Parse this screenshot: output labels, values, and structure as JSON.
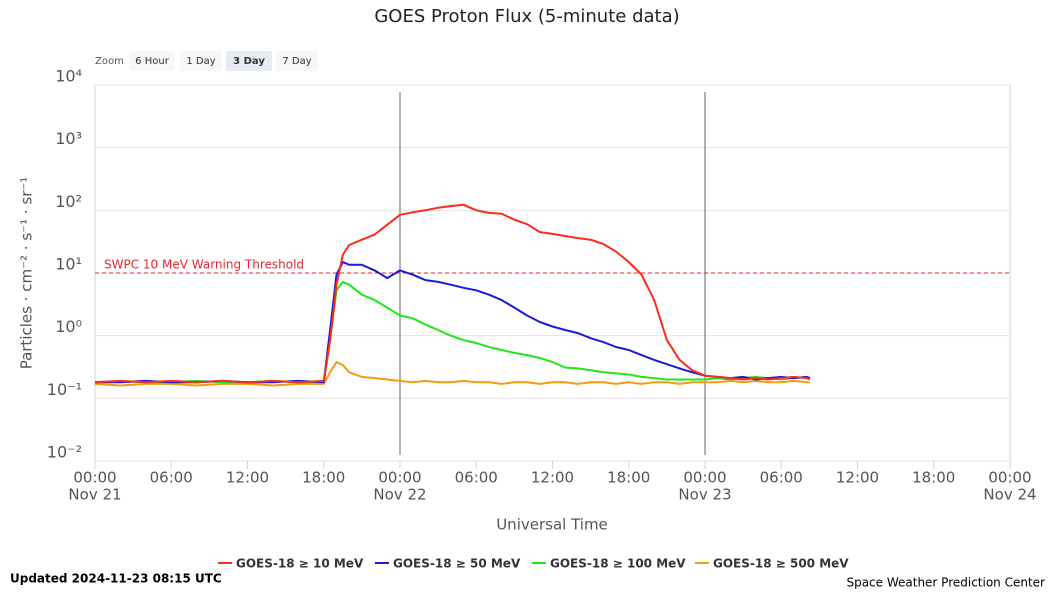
{
  "chart_data": {
    "type": "line",
    "title": "GOES Proton Flux (5-minute data)",
    "zoom": {
      "label": "Zoom",
      "buttons": [
        "6 Hour",
        "1 Day",
        "3 Day",
        "7 Day"
      ],
      "selected": 2
    },
    "x_label": "Universal Time",
    "y_label": "Particles · cm⁻² · s⁻¹ · sr⁻¹",
    "log_y": true,
    "grid": true,
    "xlim": [
      "Nov 21 00:00",
      "Nov 24 00:00"
    ],
    "xticks": [
      {
        "value": "Nov 21 00:00",
        "label": "00:00"
      },
      {
        "value": "Nov 21 06:00",
        "label": "06:00"
      },
      {
        "value": "Nov 21 12:00",
        "label": "12:00"
      },
      {
        "value": "Nov 21 18:00",
        "label": "18:00"
      },
      {
        "value": "Nov 22 00:00",
        "label": "00:00"
      },
      {
        "value": "Nov 22 06:00",
        "label": "06:00"
      },
      {
        "value": "Nov 22 12:00",
        "label": "12:00"
      },
      {
        "value": "Nov 22 18:00",
        "label": "18:00"
      },
      {
        "value": "Nov 23 00:00",
        "label": "00:00"
      },
      {
        "value": "Nov 23 06:00",
        "label": "06:00"
      },
      {
        "value": "Nov 23 12:00",
        "label": "12:00"
      },
      {
        "value": "Nov 23 18:00",
        "label": "18:00"
      },
      {
        "value": "Nov 24 00:00",
        "label": "00:00"
      }
    ],
    "xtick_dates": [
      {
        "value": "Nov 21 00:00",
        "label": "Nov 21"
      },
      {
        "value": "Nov 22 00:00",
        "label": "Nov 22"
      },
      {
        "value": "Nov 23 00:00",
        "label": "Nov 23"
      },
      {
        "value": "Nov 24 00:00",
        "label": "Nov 24"
      }
    ],
    "ylim": [
      0.01,
      10000
    ],
    "yticks": [
      {
        "value": 0.01,
        "label": "10⁻²"
      },
      {
        "value": 0.1,
        "label": "10⁻¹"
      },
      {
        "value": 1,
        "label": "10⁰"
      },
      {
        "value": 10,
        "label": "10¹"
      },
      {
        "value": 100,
        "label": "10²"
      },
      {
        "value": 1000,
        "label": "10³"
      },
      {
        "value": 10000,
        "label": "10⁴"
      }
    ],
    "threshold": {
      "value": 10,
      "label": "SWPC 10 MeV Warning Threshold",
      "color": "#e8262b"
    },
    "plot_lines_x": [
      "Nov 22 00:00",
      "Nov 23 00:00"
    ],
    "x": [
      "Nov 21 00:00",
      "Nov 21 02:00",
      "Nov 21 04:00",
      "Nov 21 06:00",
      "Nov 21 08:00",
      "Nov 21 10:00",
      "Nov 21 12:00",
      "Nov 21 14:00",
      "Nov 21 16:00",
      "Nov 21 18:00",
      "Nov 21 18:30",
      "Nov 21 19:00",
      "Nov 21 19:30",
      "Nov 21 20:00",
      "Nov 21 21:00",
      "Nov 21 22:00",
      "Nov 21 23:00",
      "Nov 22 00:00",
      "Nov 22 01:00",
      "Nov 22 02:00",
      "Nov 22 03:00",
      "Nov 22 04:00",
      "Nov 22 05:00",
      "Nov 22 06:00",
      "Nov 22 07:00",
      "Nov 22 08:00",
      "Nov 22 09:00",
      "Nov 22 10:00",
      "Nov 22 11:00",
      "Nov 22 12:00",
      "Nov 22 13:00",
      "Nov 22 14:00",
      "Nov 22 15:00",
      "Nov 22 16:00",
      "Nov 22 17:00",
      "Nov 22 18:00",
      "Nov 22 19:00",
      "Nov 22 20:00",
      "Nov 22 21:00",
      "Nov 22 22:00",
      "Nov 22 23:00",
      "Nov 23 00:00",
      "Nov 23 01:00",
      "Nov 23 02:00",
      "Nov 23 03:00",
      "Nov 23 04:00",
      "Nov 23 05:00",
      "Nov 23 06:00",
      "Nov 23 07:00",
      "Nov 23 08:00",
      "Nov 23 08:15"
    ],
    "series": [
      {
        "name": "GOES-18 ≥ 10 MeV",
        "color": "#ff2a1a",
        "values": [
          0.18,
          0.19,
          0.18,
          0.19,
          0.18,
          0.19,
          0.18,
          0.19,
          0.18,
          0.19,
          0.85,
          6.5,
          19.5,
          28,
          34,
          41,
          59,
          85,
          93,
          100,
          110,
          117,
          123,
          100,
          91,
          88,
          71,
          60,
          45,
          42,
          39,
          36,
          34,
          29,
          22,
          15,
          9.4,
          3.7,
          0.85,
          0.41,
          0.28,
          0.23,
          0.22,
          0.21,
          0.2,
          0.21,
          0.2,
          0.21,
          0.22,
          0.21,
          0.2
        ]
      },
      {
        "name": "GOES-18 ≥ 50 MeV",
        "color": "#1a1adb",
        "values": [
          0.18,
          0.18,
          0.19,
          0.18,
          0.18,
          0.19,
          0.18,
          0.18,
          0.19,
          0.18,
          1.23,
          9.4,
          15,
          13.5,
          13.5,
          11,
          8.3,
          11,
          9.4,
          7.7,
          7.2,
          6.5,
          5.8,
          5.3,
          4.5,
          3.7,
          2.8,
          2.1,
          1.65,
          1.4,
          1.23,
          1.1,
          0.91,
          0.79,
          0.66,
          0.59,
          0.49,
          0.41,
          0.35,
          0.3,
          0.26,
          0.23,
          0.22,
          0.21,
          0.22,
          0.2,
          0.21,
          0.22,
          0.21,
          0.22,
          0.21
        ]
      },
      {
        "name": "GOES-18 ≥ 100 MeV",
        "color": "#22e61a",
        "values": [
          0.18,
          0.19,
          0.18,
          0.18,
          0.19,
          0.18,
          0.18,
          0.19,
          0.18,
          0.18,
          0.85,
          5.3,
          7.2,
          6.5,
          4.5,
          3.7,
          2.8,
          2.1,
          1.9,
          1.5,
          1.23,
          1.0,
          0.85,
          0.76,
          0.66,
          0.59,
          0.53,
          0.49,
          0.44,
          0.38,
          0.31,
          0.3,
          0.28,
          0.26,
          0.25,
          0.24,
          0.22,
          0.21,
          0.2,
          0.2,
          0.2,
          0.2,
          0.21,
          0.2,
          0.21,
          0.22,
          0.21,
          0.2,
          0.21,
          0.22,
          0.21
        ]
      },
      {
        "name": "GOES-18 ≥ 500 MeV",
        "color": "#f39c12",
        "values": [
          0.17,
          0.16,
          0.17,
          0.17,
          0.16,
          0.17,
          0.17,
          0.16,
          0.17,
          0.17,
          0.26,
          0.38,
          0.34,
          0.26,
          0.22,
          0.21,
          0.2,
          0.19,
          0.18,
          0.19,
          0.18,
          0.18,
          0.19,
          0.18,
          0.18,
          0.17,
          0.18,
          0.18,
          0.17,
          0.18,
          0.18,
          0.17,
          0.18,
          0.18,
          0.17,
          0.18,
          0.17,
          0.18,
          0.18,
          0.17,
          0.18,
          0.18,
          0.18,
          0.19,
          0.18,
          0.19,
          0.18,
          0.18,
          0.19,
          0.18,
          0.18
        ]
      }
    ],
    "updated": "Updated 2024-11-23 08:15 UTC",
    "credit": "Space Weather Prediction Center"
  }
}
